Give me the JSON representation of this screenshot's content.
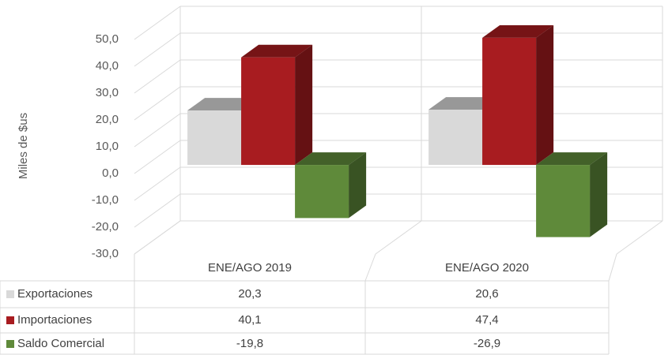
{
  "chart_data": {
    "type": "bar3d",
    "y_label": "Miles de $us",
    "categories": [
      "ENE/AGO 2019",
      "ENE/AGO 2020"
    ],
    "series": [
      {
        "name": "Exportaciones",
        "color": "#d9d9d9",
        "values": [
          20.3,
          20.6
        ],
        "value_labels": [
          "20,3",
          "20,6"
        ]
      },
      {
        "name": "Importaciones",
        "color": "#a81c20",
        "values": [
          40.1,
          47.4
        ],
        "value_labels": [
          "40,1",
          "47,4"
        ]
      },
      {
        "name": "Saldo Comercial",
        "color": "#5f8a3a",
        "values": [
          -19.8,
          -26.9
        ],
        "value_labels": [
          "-19,8",
          "-26,9"
        ]
      }
    ],
    "ylim": [
      -30,
      50
    ],
    "yticks": [
      {
        "value": -30,
        "label": "-30,0"
      },
      {
        "value": -20,
        "label": "-20,0"
      },
      {
        "value": -10,
        "label": "-10,0"
      },
      {
        "value": 0,
        "label": "0,0"
      },
      {
        "value": 10,
        "label": "10,0"
      },
      {
        "value": 20,
        "label": "20,0"
      },
      {
        "value": 30,
        "label": "30,0"
      },
      {
        "value": 40,
        "label": "40,0"
      },
      {
        "value": 50,
        "label": "50,0"
      }
    ],
    "grid": true
  }
}
